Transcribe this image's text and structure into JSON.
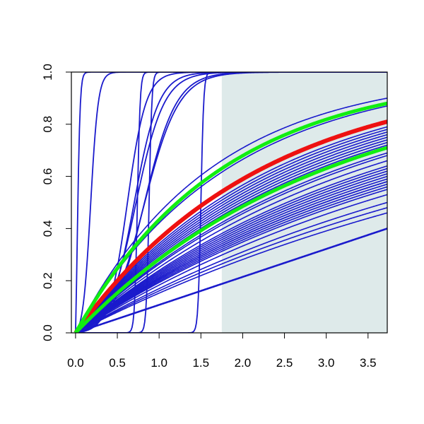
{
  "chart_data": {
    "type": "line",
    "title": "",
    "xlabel": "",
    "ylabel": "",
    "xlim": [
      -0.05,
      3.73
    ],
    "ylim": [
      0.0,
      1.0
    ],
    "x_ticks": [
      "0.0",
      "0.5",
      "1.0",
      "1.5",
      "2.0",
      "2.5",
      "3.0",
      "3.5"
    ],
    "y_ticks": [
      "0.0",
      "0.2",
      "0.4",
      "0.6",
      "0.8",
      "1.0"
    ],
    "shaded_region": {
      "x_from": 1.75,
      "x_to": 3.73,
      "color": "#deeaea"
    },
    "colors": {
      "blue": "#1a1acc",
      "red": "#ee1111",
      "green": "#11ee11",
      "axis": "#000000"
    },
    "curves": {
      "steep": [
        {
          "kind": "logistic",
          "x0": 0.02,
          "k": 60
        },
        {
          "kind": "logistic",
          "x0": 0.18,
          "k": 22
        },
        {
          "kind": "step",
          "x0": 0.74
        },
        {
          "kind": "step",
          "x0": 0.88
        },
        {
          "kind": "step",
          "x0": 1.5
        },
        {
          "kind": "logistic",
          "x0": 0.62,
          "k": 9
        },
        {
          "kind": "logistic",
          "x0": 0.7,
          "k": 6.8
        },
        {
          "kind": "logistic",
          "x0": 0.72,
          "k": 5.9
        },
        {
          "kind": "logistic",
          "x0": 0.82,
          "k": 5.2
        },
        {
          "kind": "logistic",
          "x0": 0.82,
          "k": 4.8
        }
      ],
      "blue_bundle_y_at_xmax": [
        0.9,
        0.87,
        0.79,
        0.78,
        0.77,
        0.76,
        0.75,
        0.74,
        0.73,
        0.72,
        0.71,
        0.69,
        0.68,
        0.66,
        0.64,
        0.63,
        0.62,
        0.61,
        0.6,
        0.59,
        0.58,
        0.58,
        0.57,
        0.56,
        0.55,
        0.53,
        0.5,
        0.48,
        0.46
      ],
      "blue_straight_y_at_xmax": 0.4,
      "red_y_at_xmax": 0.81,
      "green_y_at_xmax": [
        0.88,
        0.71
      ]
    }
  }
}
